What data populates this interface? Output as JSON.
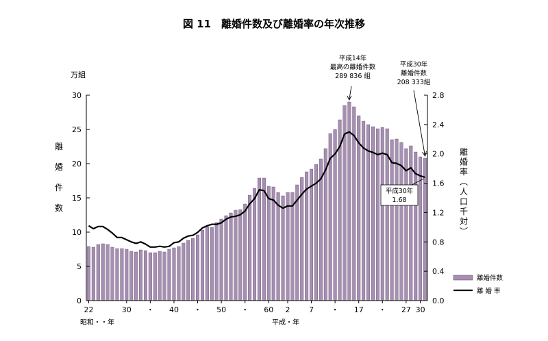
{
  "chart_data": {
    "type": "bar",
    "title": "図 11　離婚件数及び離婚率の年次推移",
    "y_left": {
      "unit": "万組",
      "label": [
        "離",
        "婚",
        "件",
        "数"
      ],
      "ylim": [
        0,
        30
      ],
      "ticks": [
        "0",
        "5",
        "10",
        "15",
        "20",
        "25",
        "30"
      ]
    },
    "y_right": {
      "label": [
        "離",
        "婚",
        "率",
        "︵",
        "人",
        "口",
        "千",
        "対",
        "︶"
      ],
      "ylim": [
        0,
        2.8
      ],
      "ticks": [
        "0.0",
        "0.4",
        "0.8",
        "1.2",
        "1.6",
        "2.0",
        "2.4",
        "2.8"
      ]
    },
    "x_ticks": [
      {
        "index": 0,
        "label": "22"
      },
      {
        "index": 8,
        "label": "30"
      },
      {
        "index": 13,
        "label": "・"
      },
      {
        "index": 18,
        "label": "40"
      },
      {
        "index": 23,
        "label": "・"
      },
      {
        "index": 28,
        "label": "50"
      },
      {
        "index": 33,
        "label": "・"
      },
      {
        "index": 38,
        "label": "60"
      },
      {
        "index": 42,
        "label": "2"
      },
      {
        "index": 47,
        "label": "7"
      },
      {
        "index": 52,
        "label": "・"
      },
      {
        "index": 57,
        "label": "17"
      },
      {
        "index": 62,
        "label": "・"
      },
      {
        "index": 67,
        "label": "27"
      },
      {
        "index": 70,
        "label": "30"
      }
    ],
    "x_era_labels": {
      "showa": "昭和・・年",
      "heisei": "平成・年"
    },
    "series": [
      {
        "name": "離婚件数",
        "type": "bar",
        "color": "#a78fb3",
        "values": [
          7.9,
          7.8,
          8.2,
          8.3,
          8.2,
          7.8,
          7.6,
          7.6,
          7.5,
          7.2,
          7.1,
          7.4,
          7.3,
          7.0,
          7.0,
          7.2,
          7.1,
          7.5,
          7.7,
          7.9,
          8.4,
          8.8,
          9.1,
          9.6,
          10.3,
          10.8,
          10.7,
          11.4,
          11.9,
          12.4,
          12.8,
          13.2,
          13.3,
          14.1,
          15.4,
          16.4,
          17.9,
          17.9,
          16.7,
          16.6,
          15.8,
          15.3,
          15.8,
          15.8,
          16.9,
          18.0,
          18.8,
          19.2,
          19.9,
          20.7,
          22.2,
          24.4,
          25.0,
          26.4,
          28.5,
          29.0,
          28.3,
          27.0,
          26.2,
          25.7,
          25.4,
          25.1,
          25.3,
          25.1,
          23.5,
          23.6,
          23.1,
          22.2,
          22.6,
          21.7,
          21.0,
          20.8
        ]
      },
      {
        "name": "離 婚 率",
        "type": "line",
        "color": "#000000",
        "values": [
          1.02,
          0.98,
          1.01,
          1.01,
          0.97,
          0.92,
          0.86,
          0.86,
          0.83,
          0.8,
          0.78,
          0.8,
          0.77,
          0.73,
          0.73,
          0.74,
          0.73,
          0.74,
          0.79,
          0.8,
          0.85,
          0.88,
          0.89,
          0.93,
          0.99,
          1.02,
          1.04,
          1.04,
          1.06,
          1.11,
          1.14,
          1.15,
          1.17,
          1.22,
          1.32,
          1.39,
          1.51,
          1.5,
          1.39,
          1.37,
          1.3,
          1.26,
          1.29,
          1.29,
          1.37,
          1.45,
          1.52,
          1.56,
          1.6,
          1.66,
          1.78,
          1.94,
          2.0,
          2.1,
          2.27,
          2.3,
          2.25,
          2.15,
          2.08,
          2.04,
          2.02,
          1.99,
          2.01,
          1.99,
          1.88,
          1.87,
          1.84,
          1.77,
          1.81,
          1.73,
          1.7,
          1.68
        ]
      }
    ],
    "legend": {
      "placement": "bottom-right",
      "items": [
        "離婚件数",
        "離 婚 率"
      ]
    },
    "annotations": [
      {
        "target_index": 55,
        "lines": [
          "平成14年",
          "最高の離婚件数",
          "289 836 組"
        ]
      },
      {
        "target_index": 71,
        "lines": [
          "平成30年",
          "離婚件数",
          "208 333組"
        ]
      },
      {
        "target_index": 71,
        "boxed": true,
        "lines": [
          "平成30年",
          "1.68"
        ]
      }
    ],
    "grid": false
  }
}
